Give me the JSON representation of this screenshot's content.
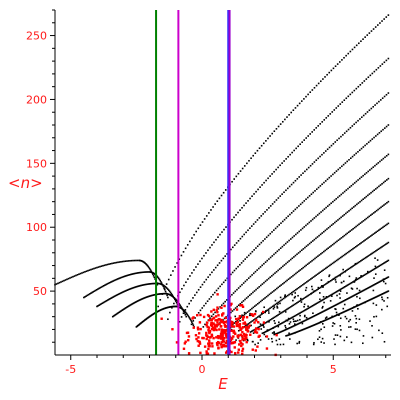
{
  "chart_data": {
    "type": "scatter",
    "title": "",
    "xlabel": "E",
    "ylabel": "<n>",
    "xlim": [
      -5.6,
      7.2
    ],
    "ylim": [
      0,
      270
    ],
    "x_ticks": [
      -5,
      0,
      5
    ],
    "x_tick_labels": [
      "-5",
      "0",
      "5"
    ],
    "y_ticks": [
      50,
      100,
      150,
      200,
      250
    ],
    "y_tick_labels": [
      "50",
      "100",
      "150",
      "200",
      "250"
    ],
    "grid": false,
    "legend": "none",
    "vertical_lines": [
      {
        "x": -1.75,
        "color": "#008000"
      },
      {
        "x": -0.9,
        "color": "#cc00cc"
      },
      {
        "x": 1.0,
        "color": "#3333ff"
      },
      {
        "x": 1.05,
        "color": "#9900cc"
      }
    ],
    "curve_series": {
      "color": "#000000",
      "families": [
        {
          "x_start": -1.75,
          "y_start": 30,
          "x_end": 7.1,
          "y_end": 266,
          "exponent": 0.72
        },
        {
          "x_start": -1.3,
          "y_start": 28,
          "x_end": 7.1,
          "y_end": 232,
          "exponent": 0.78
        },
        {
          "x_start": -0.85,
          "y_start": 26,
          "x_end": 7.1,
          "y_end": 205,
          "exponent": 0.82
        },
        {
          "x_start": -0.4,
          "y_start": 24,
          "x_end": 7.1,
          "y_end": 180,
          "exponent": 0.86
        },
        {
          "x_start": 0.05,
          "y_start": 22,
          "x_end": 7.1,
          "y_end": 157,
          "exponent": 0.9
        },
        {
          "x_start": 0.5,
          "y_start": 21,
          "x_end": 7.1,
          "y_end": 138,
          "exponent": 0.94
        },
        {
          "x_start": 0.95,
          "y_start": 20,
          "x_end": 7.1,
          "y_end": 120,
          "exponent": 0.97
        },
        {
          "x_start": 1.4,
          "y_start": 19,
          "x_end": 7.1,
          "y_end": 103,
          "exponent": 1.0
        },
        {
          "x_start": 1.85,
          "y_start": 18,
          "x_end": 7.1,
          "y_end": 88,
          "exponent": 1.03
        },
        {
          "x_start": 2.3,
          "y_start": 17,
          "x_end": 7.1,
          "y_end": 74,
          "exponent": 1.06
        },
        {
          "x_start": 2.75,
          "y_start": 16,
          "x_end": 7.1,
          "y_end": 61,
          "exponent": 1.08
        },
        {
          "x_start": 3.2,
          "y_start": 15,
          "x_end": 7.1,
          "y_end": 50,
          "exponent": 1.1
        }
      ],
      "left_branches": [
        {
          "x_start": -5.6,
          "y_start": 55,
          "x_peak": -2.4,
          "y_peak": 74,
          "x_end": -1.7,
          "y_end": 55
        },
        {
          "x_start": -4.5,
          "y_start": 45,
          "x_peak": -2.0,
          "y_peak": 65,
          "x_end": -1.3,
          "y_end": 45
        },
        {
          "x_start": -4.0,
          "y_start": 38,
          "x_peak": -1.7,
          "y_peak": 56,
          "x_end": -0.9,
          "y_end": 38
        },
        {
          "x_start": -3.4,
          "y_start": 30,
          "x_peak": -1.4,
          "y_peak": 48,
          "x_end": -0.6,
          "y_end": 30
        },
        {
          "x_start": -2.5,
          "y_start": 22,
          "x_peak": -1.0,
          "y_peak": 38,
          "x_end": -0.3,
          "y_end": 22
        }
      ]
    },
    "red_cluster": {
      "color": "#ff0000",
      "center_x": 0.9,
      "center_y": 18,
      "spread_x": 0.7,
      "spread_y": 9,
      "count": 320
    }
  }
}
